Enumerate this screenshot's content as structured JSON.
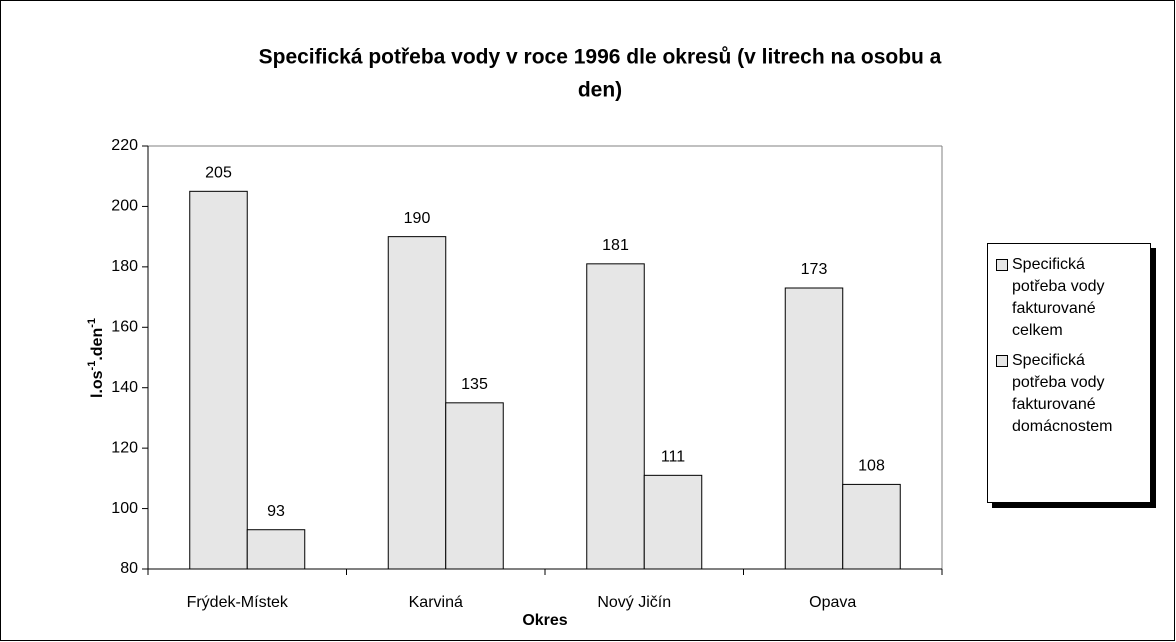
{
  "chart_data": {
    "type": "bar",
    "title": [
      "Specifická potřeba vody v roce 1996 dle okresů (v litrech na osobu a",
      "den)"
    ],
    "xlabel": "Okres",
    "ylabel_parts": [
      "l.os",
      "-1",
      ".den",
      "-1"
    ],
    "categories": [
      "Frýdek-Místek",
      "Karviná",
      "Nový Jičín",
      "Opava"
    ],
    "series": [
      {
        "name": "Specifická potřeba vody fakturované celkem",
        "color": "#e6e6e6",
        "values": [
          205,
          190,
          181,
          173
        ]
      },
      {
        "name": "Specifická potřeba vody fakturované domácnostem",
        "color": "#e6e6e6",
        "values": [
          93,
          135,
          111,
          108
        ]
      }
    ],
    "ylim": [
      80,
      220
    ],
    "yticks": [
      80,
      100,
      120,
      140,
      160,
      180,
      200,
      220
    ],
    "legend": "right"
  }
}
